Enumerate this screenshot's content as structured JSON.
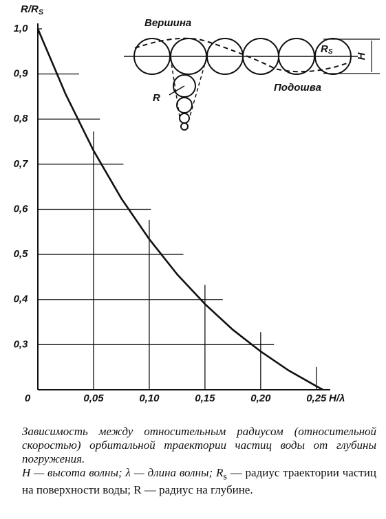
{
  "chart_data": {
    "type": "line",
    "y_label": "R/R",
    "y_label_subscript": "S",
    "x_label": "H/λ",
    "x": [
      0,
      0.025,
      0.05,
      0.075,
      0.1,
      0.125,
      0.15,
      0.175,
      0.2,
      0.225,
      0.25,
      0.256
    ],
    "values": [
      1.0,
      0.855,
      0.73,
      0.624,
      0.534,
      0.456,
      0.39,
      0.333,
      0.285,
      0.243,
      0.208,
      0.2
    ],
    "color": "#111111",
    "xlim": [
      0,
      0.26
    ],
    "ylim": [
      0.2,
      1.0
    ],
    "xticks": [
      {
        "value": 0,
        "label": "0"
      },
      {
        "value": 0.05,
        "label": "0,05"
      },
      {
        "value": 0.1,
        "label": "0,10"
      },
      {
        "value": 0.15,
        "label": "0,15"
      },
      {
        "value": 0.2,
        "label": "0,20"
      },
      {
        "value": 0.25,
        "label": "0,25"
      }
    ],
    "yticks": [
      {
        "value": 0.3,
        "label": "0,3"
      },
      {
        "value": 0.4,
        "label": "0,4"
      },
      {
        "value": 0.5,
        "label": "0,5"
      },
      {
        "value": 0.6,
        "label": "0,6"
      },
      {
        "value": 0.7,
        "label": "0,7"
      },
      {
        "value": 0.8,
        "label": "0,8"
      },
      {
        "value": 0.9,
        "label": "0,9"
      },
      {
        "value": 1.0,
        "label": "1,0"
      }
    ],
    "grid": true,
    "inset": {
      "crest": "Вершина",
      "trough": "Подошва",
      "radius": "R",
      "surface_radius": "R",
      "surface_radius_subscript": "S",
      "height": "H"
    }
  },
  "caption": {
    "title": "Зависимость между относительным радиусом (относительной скоростью) орбитальной траектории частиц воды от глубины погружения.",
    "legend_part1": "H — высота волны; λ — длина волны; R",
    "legend_sub": "s",
    "legend_part2": " — радиус траектории частиц на поверхности воды; R — радиус на глубине."
  }
}
